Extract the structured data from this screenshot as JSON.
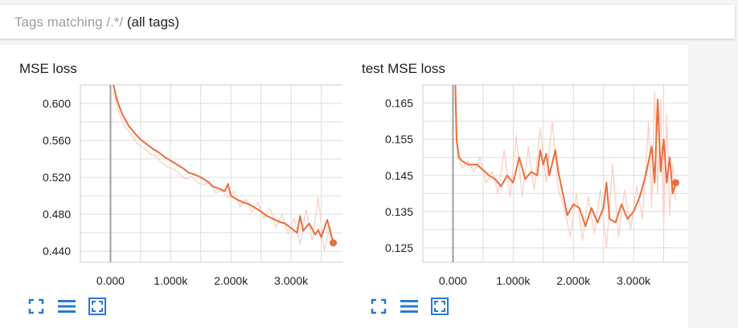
{
  "tag_filter": {
    "prefix": "Tags matching ",
    "regex": "/.*/",
    "suffix": "(all tags)"
  },
  "colors": {
    "smoothed": "#e96e3d",
    "raw": "#fbd3c6",
    "grid": "#dddddd",
    "axis": "#9e9e9e",
    "icon": "#2a7ad1"
  },
  "icons": [
    "fullscreen-icon",
    "list-icon",
    "fit-domain-icon"
  ],
  "chart_data": [
    {
      "type": "line",
      "title": "MSE loss",
      "xlabel": "",
      "ylabel": "",
      "xlim": [
        -500,
        4000
      ],
      "ylim": [
        0.428,
        0.62
      ],
      "x_ticks": [
        0,
        1000,
        2000,
        3000
      ],
      "x_tick_labels": [
        "0.000",
        "1.000k",
        "2.000k",
        "3.000k"
      ],
      "y_ticks": [
        0.44,
        0.48,
        0.52,
        0.56,
        0.6
      ],
      "y_tick_labels": [
        "0.440",
        "0.480",
        "0.520",
        "0.560",
        "0.600"
      ],
      "grid": true,
      "series": [
        {
          "style": "smoothed",
          "x": [
            50,
            100,
            150,
            200,
            300,
            400,
            500,
            600,
            700,
            800,
            900,
            1000,
            1100,
            1200,
            1300,
            1400,
            1500,
            1600,
            1700,
            1800,
            1900,
            1950,
            2000,
            2100,
            2200,
            2300,
            2400,
            2500,
            2600,
            2700,
            2800,
            2900,
            3000,
            3100,
            3150,
            3200,
            3300,
            3400,
            3450,
            3500,
            3600,
            3700
          ],
          "y": [
            0.62,
            0.606,
            0.596,
            0.588,
            0.576,
            0.568,
            0.561,
            0.556,
            0.551,
            0.547,
            0.542,
            0.538,
            0.534,
            0.53,
            0.525,
            0.523,
            0.52,
            0.516,
            0.51,
            0.508,
            0.505,
            0.513,
            0.5,
            0.496,
            0.493,
            0.491,
            0.487,
            0.483,
            0.478,
            0.475,
            0.472,
            0.47,
            0.465,
            0.46,
            0.478,
            0.462,
            0.47,
            0.458,
            0.463,
            0.455,
            0.474,
            0.449
          ]
        },
        {
          "style": "raw",
          "x": [
            50,
            150,
            250,
            350,
            450,
            550,
            650,
            750,
            850,
            950,
            1050,
            1150,
            1250,
            1350,
            1450,
            1550,
            1650,
            1750,
            1850,
            1950,
            2050,
            2150,
            2250,
            2350,
            2450,
            2550,
            2650,
            2750,
            2850,
            2950,
            3050,
            3150,
            3250,
            3350,
            3450,
            3550,
            3650,
            3700
          ],
          "y": [
            0.612,
            0.588,
            0.574,
            0.566,
            0.556,
            0.552,
            0.546,
            0.543,
            0.536,
            0.531,
            0.529,
            0.524,
            0.518,
            0.521,
            0.514,
            0.512,
            0.516,
            0.503,
            0.506,
            0.497,
            0.505,
            0.488,
            0.496,
            0.482,
            0.493,
            0.475,
            0.486,
            0.466,
            0.48,
            0.458,
            0.476,
            0.447,
            0.485,
            0.452,
            0.498,
            0.44,
            0.467,
            0.445
          ]
        }
      ],
      "last_point": {
        "x": 3700,
        "y": 0.449
      }
    },
    {
      "type": "line",
      "title": "test MSE loss",
      "xlabel": "",
      "ylabel": "",
      "xlim": [
        -500,
        4000
      ],
      "ylim": [
        0.121,
        0.17
      ],
      "x_ticks": [
        0,
        1000,
        2000,
        3000
      ],
      "x_tick_labels": [
        "0.000",
        "1.000k",
        "2.000k",
        "3.000k"
      ],
      "y_ticks": [
        0.125,
        0.135,
        0.145,
        0.155,
        0.165
      ],
      "y_tick_labels": [
        "0.125",
        "0.135",
        "0.145",
        "0.155",
        "0.165"
      ],
      "grid": true,
      "series": [
        {
          "style": "smoothed",
          "x": [
            40,
            60,
            100,
            150,
            250,
            400,
            600,
            700,
            800,
            900,
            1000,
            1100,
            1200,
            1300,
            1400,
            1450,
            1500,
            1550,
            1600,
            1700,
            1750,
            1800,
            1850,
            1900,
            2000,
            2100,
            2200,
            2300,
            2400,
            2500,
            2550,
            2600,
            2700,
            2800,
            2900,
            3000,
            3100,
            3200,
            3300,
            3350,
            3400,
            3450,
            3500,
            3550,
            3600,
            3650,
            3700
          ],
          "y": [
            0.17,
            0.155,
            0.15,
            0.149,
            0.148,
            0.148,
            0.145,
            0.144,
            0.142,
            0.145,
            0.143,
            0.15,
            0.144,
            0.146,
            0.145,
            0.152,
            0.148,
            0.151,
            0.145,
            0.152,
            0.146,
            0.142,
            0.138,
            0.134,
            0.137,
            0.136,
            0.131,
            0.136,
            0.132,
            0.136,
            0.143,
            0.133,
            0.132,
            0.137,
            0.133,
            0.135,
            0.139,
            0.145,
            0.153,
            0.143,
            0.166,
            0.146,
            0.155,
            0.143,
            0.15,
            0.14,
            0.143
          ]
        },
        {
          "style": "raw",
          "x": [
            40,
            80,
            150,
            250,
            350,
            450,
            550,
            650,
            750,
            850,
            950,
            1050,
            1150,
            1250,
            1350,
            1450,
            1550,
            1650,
            1750,
            1850,
            1950,
            2050,
            2150,
            2250,
            2350,
            2450,
            2550,
            2650,
            2750,
            2850,
            2950,
            3050,
            3150,
            3250,
            3300,
            3350,
            3400,
            3450,
            3500,
            3550,
            3600,
            3650,
            3700
          ],
          "y": [
            0.169,
            0.15,
            0.147,
            0.149,
            0.146,
            0.15,
            0.143,
            0.146,
            0.14,
            0.152,
            0.139,
            0.156,
            0.139,
            0.153,
            0.141,
            0.158,
            0.143,
            0.16,
            0.141,
            0.136,
            0.128,
            0.14,
            0.127,
            0.139,
            0.129,
            0.141,
            0.125,
            0.148,
            0.128,
            0.141,
            0.13,
            0.142,
            0.133,
            0.16,
            0.136,
            0.168,
            0.14,
            0.166,
            0.131,
            0.162,
            0.134,
            0.148,
            0.138
          ]
        }
      ],
      "last_point": {
        "x": 3700,
        "y": 0.143
      }
    }
  ]
}
